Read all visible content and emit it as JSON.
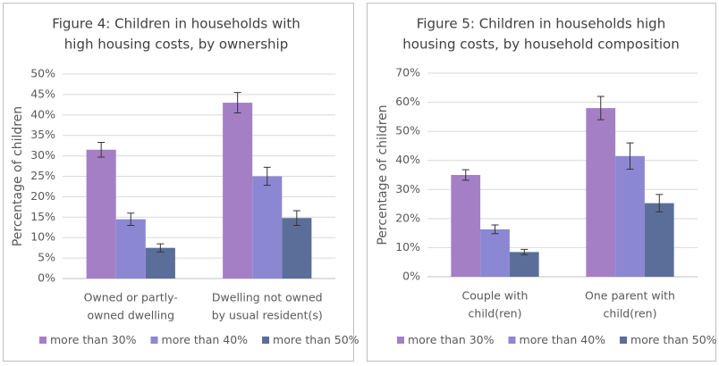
{
  "chart_data": [
    {
      "type": "bar",
      "title": [
        "Figure 4: Children in households with",
        "high housing costs, by ownership"
      ],
      "y_label": "Percentage of children",
      "categories": [
        [
          "Owned or partly-",
          "owned dwelling"
        ],
        [
          "Dwelling not owned",
          "by usual resident(s)"
        ]
      ],
      "series": [
        {
          "name": "more than 30%",
          "color": "#a57fc6",
          "values": [
            31.5,
            43
          ],
          "errors": [
            1.8,
            2.5
          ]
        },
        {
          "name": "more than 40%",
          "color": "#8b87d3",
          "values": [
            14.5,
            25
          ],
          "errors": [
            1.5,
            2.2
          ]
        },
        {
          "name": "more than 50%",
          "color": "#5a6e99",
          "values": [
            7.5,
            14.8
          ],
          "errors": [
            1.0,
            1.8
          ]
        }
      ],
      "ylim": [
        0,
        50
      ],
      "yticks": [
        {
          "value": 0,
          "label": "0%"
        },
        {
          "value": 5,
          "label": "5%"
        },
        {
          "value": 10,
          "label": "10%"
        },
        {
          "value": 15,
          "label": "15%"
        },
        {
          "value": 20,
          "label": "20%"
        },
        {
          "value": 25,
          "label": "25%"
        },
        {
          "value": 30,
          "label": "30%"
        },
        {
          "value": 35,
          "label": "35%"
        },
        {
          "value": 40,
          "label": "40%"
        },
        {
          "value": 45,
          "label": "45%"
        },
        {
          "value": 50,
          "label": "50%"
        }
      ],
      "grid": true,
      "legend": "bottom"
    },
    {
      "type": "bar",
      "title": [
        "Figure 5: Children in households high",
        "housing costs, by household composition"
      ],
      "y_label": "Percentage of children",
      "categories": [
        [
          "Couple with",
          "child(ren)"
        ],
        [
          "One parent with",
          "child(ren)"
        ]
      ],
      "series": [
        {
          "name": "more than 30%",
          "color": "#a57fc6",
          "values": [
            35,
            58
          ],
          "errors": [
            1.8,
            4
          ]
        },
        {
          "name": "more than 40%",
          "color": "#8b87d3",
          "values": [
            16.3,
            41.5
          ],
          "errors": [
            1.5,
            4.5
          ]
        },
        {
          "name": "more than 50%",
          "color": "#5a6e99",
          "values": [
            8.5,
            25.3
          ],
          "errors": [
            0.9,
            3
          ]
        }
      ],
      "ylim": [
        0,
        70
      ],
      "yticks": [
        {
          "value": 0,
          "label": "0%"
        },
        {
          "value": 10,
          "label": "10%"
        },
        {
          "value": 20,
          "label": "20%"
        },
        {
          "value": 30,
          "label": "30%"
        },
        {
          "value": 40,
          "label": "40%"
        },
        {
          "value": 50,
          "label": "50%"
        },
        {
          "value": 60,
          "label": "60%"
        },
        {
          "value": 70,
          "label": "70%"
        }
      ],
      "grid": true,
      "legend": "bottom"
    }
  ]
}
